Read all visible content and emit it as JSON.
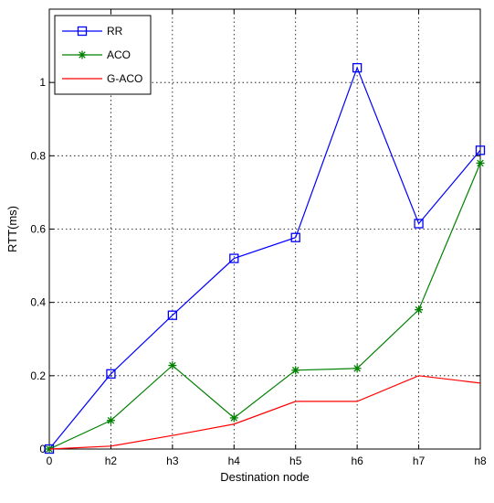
{
  "chart_data": {
    "type": "line",
    "title": "",
    "xlabel": "Destination node",
    "ylabel": "RTT(ms)",
    "categories": [
      "0",
      "h2",
      "h3",
      "h4",
      "h5",
      "h6",
      "h7",
      "h8"
    ],
    "ylim": [
      0,
      1.2
    ],
    "yticks": [
      0,
      0.2,
      0.4,
      0.6,
      0.8,
      1
    ],
    "ytick_labels": [
      "0",
      "0.2",
      "0.4",
      "0.6",
      "0.8",
      "1"
    ],
    "grid": true,
    "legend_position": "top-left",
    "series": [
      {
        "name": "RR",
        "color": "#0000ff",
        "marker": "square",
        "values": [
          0,
          0.205,
          0.365,
          0.52,
          0.577,
          1.04,
          0.615,
          0.815
        ]
      },
      {
        "name": "ACO",
        "color": "#008000",
        "marker": "star",
        "values": [
          0,
          0.078,
          0.228,
          0.085,
          0.215,
          0.22,
          0.38,
          0.78
        ]
      },
      {
        "name": "G-ACO",
        "color": "#ff0000",
        "marker": "none",
        "values": [
          0,
          0.008,
          0.037,
          0.068,
          0.13,
          0.13,
          0.2,
          0.18
        ]
      }
    ]
  }
}
